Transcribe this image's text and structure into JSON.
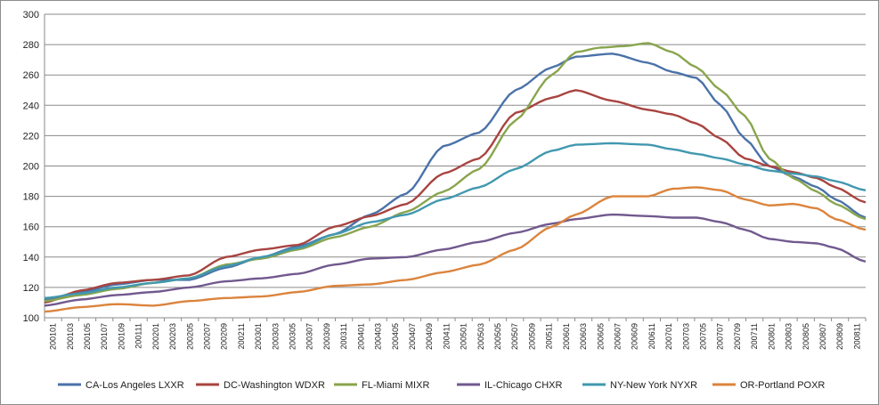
{
  "chart_data": {
    "type": "line",
    "title": "",
    "xlabel": "",
    "ylabel": "",
    "ylim": [
      100,
      300
    ],
    "yticks": [
      100,
      120,
      140,
      160,
      180,
      200,
      220,
      240,
      260,
      280,
      300
    ],
    "grid": "horizontal",
    "legend_position": "bottom",
    "x_tick_labels": [
      "200101",
      "200103",
      "200105",
      "200107",
      "200109",
      "200111",
      "200201",
      "200203",
      "200205",
      "200207",
      "200209",
      "200211",
      "200301",
      "200303",
      "200305",
      "200307",
      "200309",
      "200311",
      "200401",
      "200403",
      "200405",
      "200407",
      "200409",
      "200411",
      "200501",
      "200503",
      "200505",
      "200507",
      "200509",
      "200511",
      "200601",
      "200603",
      "200605",
      "200607",
      "200609",
      "200611",
      "200701",
      "200703",
      "200705",
      "200707",
      "200709",
      "200711",
      "200801",
      "200803",
      "200805",
      "200807",
      "200809",
      "200811"
    ],
    "x_months": 96,
    "series": [
      {
        "name": "CA-Los Angeles LXXR",
        "color": "#4a72a8",
        "points": [
          [
            0,
            112
          ],
          [
            6,
            117
          ],
          [
            12,
            122
          ],
          [
            18,
            125
          ],
          [
            24,
            125
          ],
          [
            30,
            133
          ],
          [
            36,
            140
          ],
          [
            42,
            147
          ],
          [
            48,
            155
          ],
          [
            54,
            168
          ],
          [
            60,
            182
          ],
          [
            66,
            213
          ],
          [
            72,
            222
          ],
          [
            78,
            250
          ],
          [
            84,
            265
          ],
          [
            88,
            272
          ],
          [
            94,
            274
          ],
          [
            100,
            268
          ],
          [
            104,
            262
          ],
          [
            108,
            258
          ],
          [
            112,
            240
          ],
          [
            116,
            218
          ],
          [
            120,
            200
          ],
          [
            124,
            193
          ],
          [
            128,
            186
          ],
          [
            131,
            178
          ],
          [
            136,
            166
          ]
        ]
      },
      {
        "name": "DC-Washington WDXR",
        "color": "#a84440",
        "points": [
          [
            0,
            110
          ],
          [
            6,
            118
          ],
          [
            12,
            123
          ],
          [
            18,
            125
          ],
          [
            24,
            128
          ],
          [
            30,
            140
          ],
          [
            36,
            145
          ],
          [
            42,
            148
          ],
          [
            48,
            160
          ],
          [
            54,
            167
          ],
          [
            60,
            175
          ],
          [
            66,
            195
          ],
          [
            72,
            205
          ],
          [
            78,
            235
          ],
          [
            84,
            245
          ],
          [
            88,
            250
          ],
          [
            94,
            243
          ],
          [
            100,
            237
          ],
          [
            104,
            234
          ],
          [
            108,
            228
          ],
          [
            112,
            218
          ],
          [
            116,
            205
          ],
          [
            120,
            200
          ],
          [
            124,
            196
          ],
          [
            128,
            192
          ],
          [
            131,
            186
          ],
          [
            136,
            176
          ]
        ]
      },
      {
        "name": "FL-Miami MIXR",
        "color": "#89a54e",
        "points": [
          [
            0,
            111
          ],
          [
            6,
            115
          ],
          [
            12,
            119
          ],
          [
            18,
            123
          ],
          [
            24,
            126
          ],
          [
            30,
            135
          ],
          [
            36,
            139
          ],
          [
            42,
            145
          ],
          [
            48,
            153
          ],
          [
            54,
            160
          ],
          [
            60,
            170
          ],
          [
            66,
            183
          ],
          [
            72,
            198
          ],
          [
            78,
            230
          ],
          [
            84,
            260
          ],
          [
            88,
            275
          ],
          [
            92,
            278
          ],
          [
            96,
            279
          ],
          [
            100,
            281
          ],
          [
            104,
            275
          ],
          [
            108,
            265
          ],
          [
            112,
            250
          ],
          [
            116,
            233
          ],
          [
            120,
            205
          ],
          [
            124,
            192
          ],
          [
            128,
            183
          ],
          [
            131,
            175
          ],
          [
            136,
            165
          ]
        ]
      },
      {
        "name": "IL-Chicago CHXR",
        "color": "#71598e",
        "points": [
          [
            0,
            108
          ],
          [
            6,
            112
          ],
          [
            12,
            115
          ],
          [
            18,
            117
          ],
          [
            24,
            120
          ],
          [
            30,
            124
          ],
          [
            36,
            126
          ],
          [
            42,
            129
          ],
          [
            48,
            135
          ],
          [
            54,
            139
          ],
          [
            60,
            140
          ],
          [
            66,
            145
          ],
          [
            72,
            150
          ],
          [
            78,
            156
          ],
          [
            84,
            162
          ],
          [
            88,
            165
          ],
          [
            94,
            168
          ],
          [
            100,
            167
          ],
          [
            104,
            166
          ],
          [
            108,
            166
          ],
          [
            112,
            163
          ],
          [
            116,
            158
          ],
          [
            120,
            152
          ],
          [
            124,
            150
          ],
          [
            128,
            149
          ],
          [
            131,
            146
          ],
          [
            136,
            137
          ]
        ]
      },
      {
        "name": "NY-New York NYXR",
        "color": "#4198af",
        "points": [
          [
            0,
            113
          ],
          [
            6,
            116
          ],
          [
            12,
            120
          ],
          [
            18,
            123
          ],
          [
            24,
            126
          ],
          [
            30,
            134
          ],
          [
            36,
            140
          ],
          [
            42,
            146
          ],
          [
            48,
            155
          ],
          [
            54,
            163
          ],
          [
            60,
            168
          ],
          [
            66,
            178
          ],
          [
            72,
            186
          ],
          [
            78,
            198
          ],
          [
            84,
            210
          ],
          [
            88,
            214
          ],
          [
            94,
            215
          ],
          [
            100,
            214
          ],
          [
            104,
            211
          ],
          [
            108,
            208
          ],
          [
            112,
            205
          ],
          [
            116,
            201
          ],
          [
            120,
            197
          ],
          [
            124,
            195
          ],
          [
            128,
            193
          ],
          [
            131,
            190
          ],
          [
            136,
            184
          ]
        ]
      },
      {
        "name": "OR-Portland POXR",
        "color": "#db843d",
        "points": [
          [
            0,
            104
          ],
          [
            6,
            107
          ],
          [
            12,
            109
          ],
          [
            18,
            108
          ],
          [
            24,
            111
          ],
          [
            30,
            113
          ],
          [
            36,
            114
          ],
          [
            42,
            117
          ],
          [
            48,
            121
          ],
          [
            54,
            122
          ],
          [
            60,
            125
          ],
          [
            66,
            130
          ],
          [
            72,
            135
          ],
          [
            78,
            145
          ],
          [
            84,
            160
          ],
          [
            88,
            168
          ],
          [
            94,
            180
          ],
          [
            100,
            180
          ],
          [
            104,
            185
          ],
          [
            108,
            186
          ],
          [
            112,
            184
          ],
          [
            116,
            178
          ],
          [
            120,
            174
          ],
          [
            124,
            175
          ],
          [
            128,
            172
          ],
          [
            131,
            165
          ],
          [
            136,
            158
          ]
        ]
      }
    ]
  }
}
